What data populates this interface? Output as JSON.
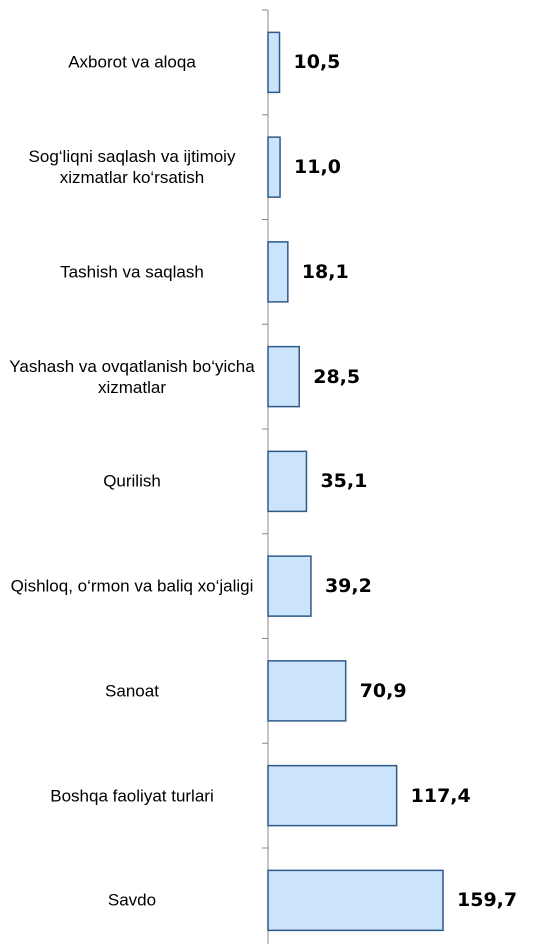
{
  "chart_data": {
    "type": "barh",
    "categories": [
      "Axborot va aloqa",
      "Sog‘liqni saqlash va ijtimoiy xizmatlar ko‘rsatish",
      "Tashish va saqlash",
      "Yashash va ovqatlanish bo‘yicha xizmatlar",
      "Qurilish",
      "Qishloq, o‘rmon va baliq xo‘jaligi",
      "Sanoat",
      "Boshqa faoliyat turlari",
      "Savdo"
    ],
    "values": [
      10.5,
      11.0,
      18.1,
      28.5,
      35.1,
      39.2,
      70.9,
      117.4,
      159.7
    ],
    "value_labels": [
      "10,5",
      "11,0",
      "18,1",
      "28,5",
      "35,1",
      "39,2",
      "70,9",
      "117,4",
      "159,7"
    ],
    "color": "#cce4fb"
  }
}
